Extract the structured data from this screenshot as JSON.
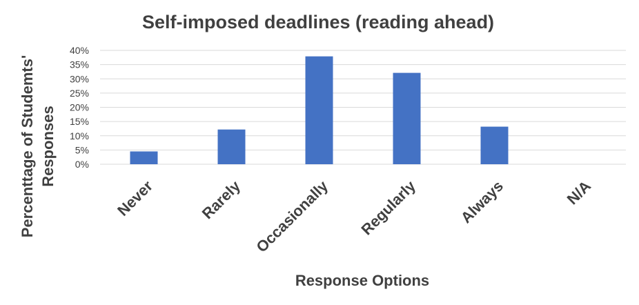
{
  "chart_data": {
    "type": "bar",
    "title": "Self-imposed deadlines (reading ahead)",
    "xlabel": "Response Options",
    "ylabel_lines": [
      "Percenttage of Studemts'",
      "Responses"
    ],
    "categories": [
      "Never",
      "Rarely",
      "Occasionally",
      "Regularly",
      "Always",
      "N/A"
    ],
    "values": [
      4.5,
      12.2,
      37.9,
      32.1,
      13.2,
      0
    ],
    "ylim": [
      0,
      40
    ],
    "yticks": [
      "0%",
      "5%",
      "10%",
      "15%",
      "20%",
      "25%",
      "30%",
      "35%",
      "40%"
    ],
    "grid": true,
    "legend": "none",
    "bar_color": "#4472C4"
  }
}
